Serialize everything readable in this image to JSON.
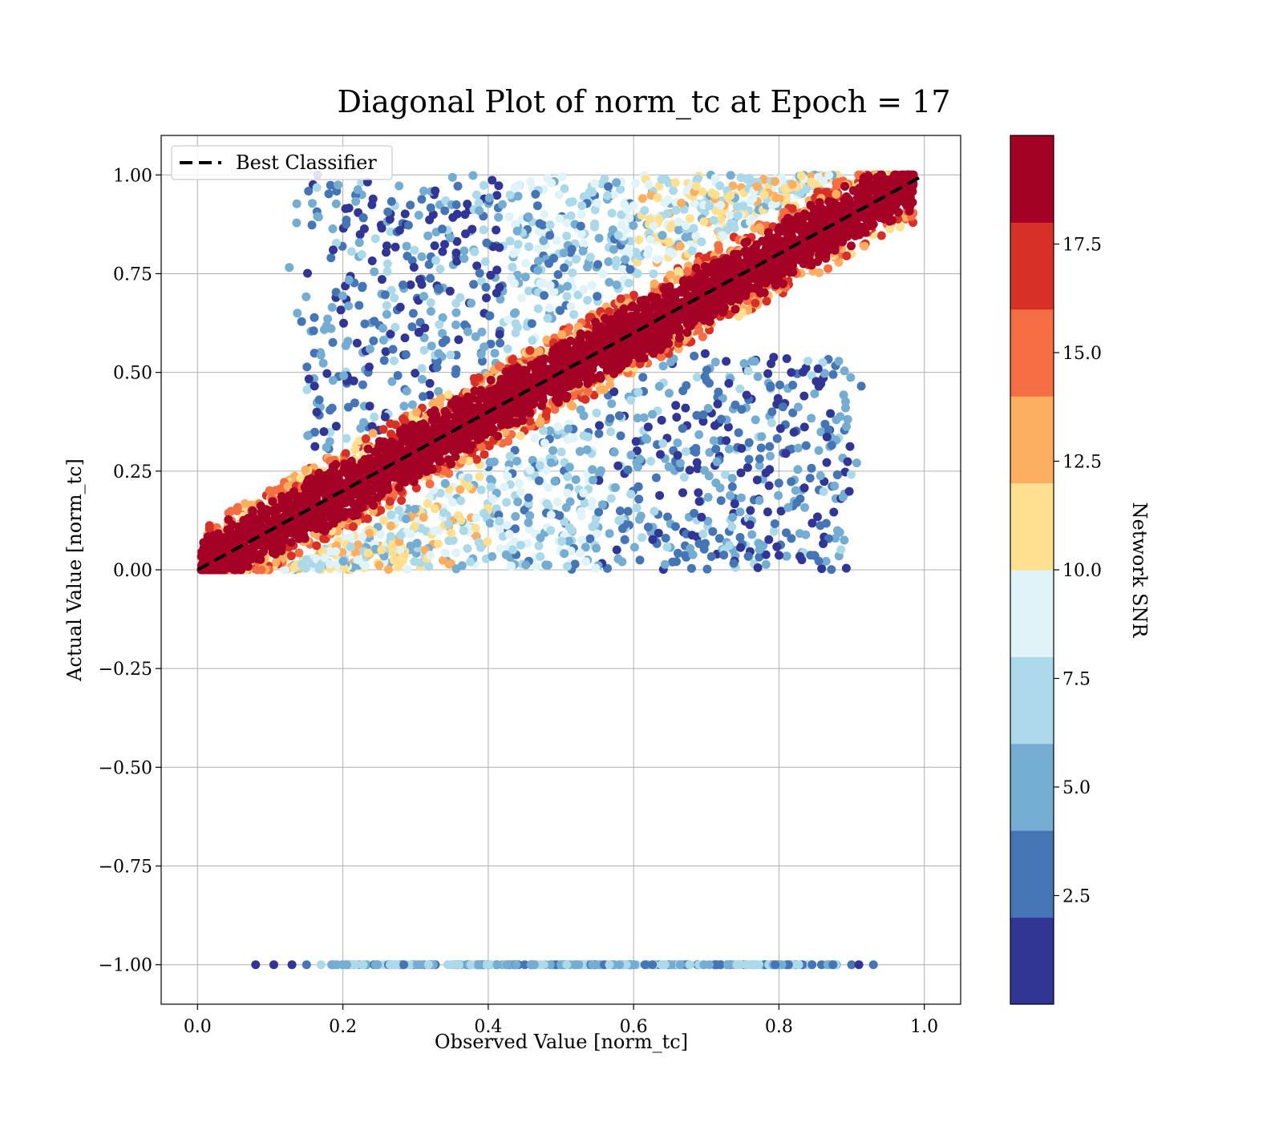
{
  "chart_data": {
    "type": "scatter",
    "title": "Diagonal Plot of norm_tc at Epoch = 17",
    "xlabel": "Observed Value [norm_tc]",
    "ylabel": "Actual Value [norm_tc]",
    "xlim": [
      -0.05,
      1.05
    ],
    "ylim": [
      -1.1,
      1.1
    ],
    "xticks": [
      0.0,
      0.2,
      0.4,
      0.6,
      0.8,
      1.0
    ],
    "xtick_labels": [
      "0.0",
      "0.2",
      "0.4",
      "0.6",
      "0.8",
      "1.0"
    ],
    "yticks": [
      1.0,
      0.75,
      0.5,
      0.25,
      0.0,
      -0.25,
      -0.5,
      -0.75,
      -1.0
    ],
    "ytick_labels": [
      "1.00",
      "0.75",
      "0.50",
      "0.25",
      "0.00",
      "−0.25",
      "−0.50",
      "−0.75",
      "−1.00"
    ],
    "grid": true,
    "legend": {
      "placement": "upper-left",
      "entries": [
        "Best Classifier"
      ]
    },
    "reference_line": {
      "label": "Best Classifier",
      "x": [
        0.0,
        1.0
      ],
      "y": [
        0.0,
        1.0
      ],
      "style": "dashed",
      "color": "#000000"
    },
    "colorbar": {
      "label": "Network SNR",
      "range": [
        0.0,
        20.0
      ],
      "ticks": [
        2.5,
        5.0,
        7.5,
        10.0,
        12.5,
        15.0,
        17.5
      ],
      "tick_labels": [
        "2.5",
        "5.0",
        "7.5",
        "10.0",
        "12.5",
        "15.0",
        "17.5"
      ],
      "colors": [
        "#313695",
        "#4575b4",
        "#74add1",
        "#abd9e9",
        "#e0f3f8",
        "#fee090",
        "#fdae61",
        "#f46d43",
        "#d73027",
        "#a50026"
      ]
    },
    "point_groups": [
      {
        "name": "diagonal band",
        "x_range": [
          0.0,
          0.99
        ],
        "y_offset": [
          -0.07,
          0.07
        ],
        "snr": "17.5-20",
        "color": "#a50026"
      },
      {
        "name": "band edge",
        "x_range": [
          0.0,
          0.99
        ],
        "y_offset": [
          -0.1,
          0.1
        ],
        "snr": "12.5-17.5",
        "color": "#f46d43"
      },
      {
        "name": "upper-left spread",
        "x_range": [
          0.15,
          0.95
        ],
        "y_range": [
          0.3,
          1.0
        ],
        "snr": "0-10"
      },
      {
        "name": "lower-right spread",
        "x_range": [
          0.1,
          0.9
        ],
        "y_range": [
          0.0,
          0.55
        ],
        "snr": "0-10"
      },
      {
        "name": "unmatched row",
        "x_range": [
          0.08,
          0.93
        ],
        "y": -1.0,
        "snr": "0-7.5"
      }
    ]
  }
}
